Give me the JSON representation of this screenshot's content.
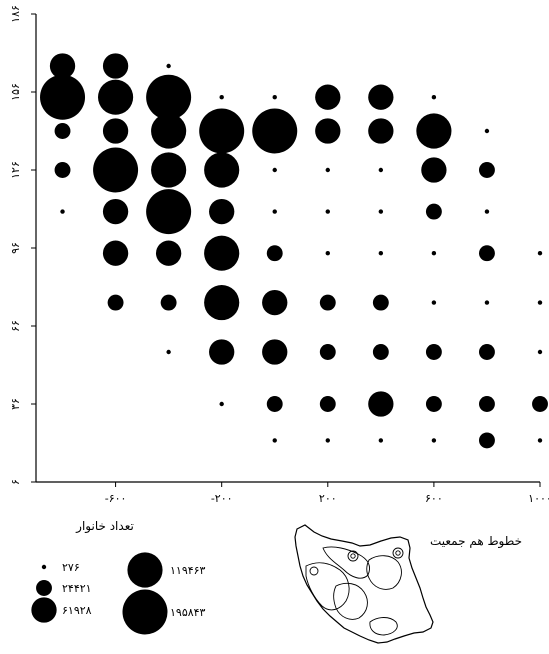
{
  "chart_data": {
    "type": "scatter",
    "title": "",
    "xlabel": "",
    "ylabel": "",
    "xlim": [
      -900,
      1000
    ],
    "ylim": [
      6,
      186
    ],
    "x_ticks": [
      {
        "value": -600,
        "label": "-۶۰۰"
      },
      {
        "value": -200,
        "label": "-۲۰۰"
      },
      {
        "value": 200,
        "label": "۲۰۰"
      },
      {
        "value": 600,
        "label": "۶۰۰"
      },
      {
        "value": 1000,
        "label": "۱۰۰۰"
      }
    ],
    "y_ticks": [
      {
        "value": 6,
        "label": "۶"
      },
      {
        "value": 36,
        "label": "۳۶"
      },
      {
        "value": 66,
        "label": "۶۶"
      },
      {
        "value": 96,
        "label": "۹۶"
      },
      {
        "value": 126,
        "label": "۱۲۶"
      },
      {
        "value": 156,
        "label": "۱۵۶"
      },
      {
        "value": 186,
        "label": "۱۸۶"
      }
    ],
    "points": [
      {
        "x": -800,
        "y": 166,
        "size": 61928
      },
      {
        "x": -600,
        "y": 166,
        "size": 61928
      },
      {
        "x": -400,
        "y": 166,
        "size": 276
      },
      {
        "x": -800,
        "y": 154,
        "size": 195843
      },
      {
        "x": -600,
        "y": 154,
        "size": 119463
      },
      {
        "x": -400,
        "y": 154,
        "size": 195843
      },
      {
        "x": -200,
        "y": 154,
        "size": 276
      },
      {
        "x": 0,
        "y": 154,
        "size": 276
      },
      {
        "x": 200,
        "y": 154,
        "size": 61928
      },
      {
        "x": 400,
        "y": 154,
        "size": 61928
      },
      {
        "x": 600,
        "y": 154,
        "size": 276
      },
      {
        "x": -800,
        "y": 141,
        "size": 24421
      },
      {
        "x": -600,
        "y": 141,
        "size": 61928
      },
      {
        "x": -400,
        "y": 141,
        "size": 119463
      },
      {
        "x": -200,
        "y": 141,
        "size": 195843
      },
      {
        "x": 0,
        "y": 141,
        "size": 195843
      },
      {
        "x": 200,
        "y": 141,
        "size": 61928
      },
      {
        "x": 400,
        "y": 141,
        "size": 61928
      },
      {
        "x": 600,
        "y": 141,
        "size": 119463
      },
      {
        "x": 800,
        "y": 141,
        "size": 276
      },
      {
        "x": -800,
        "y": 126,
        "size": 24421
      },
      {
        "x": -600,
        "y": 126,
        "size": 195843
      },
      {
        "x": -400,
        "y": 126,
        "size": 119463
      },
      {
        "x": -200,
        "y": 126,
        "size": 119463
      },
      {
        "x": 0,
        "y": 126,
        "size": 276
      },
      {
        "x": 200,
        "y": 126,
        "size": 276
      },
      {
        "x": 400,
        "y": 126,
        "size": 276
      },
      {
        "x": 600,
        "y": 126,
        "size": 61928
      },
      {
        "x": 800,
        "y": 126,
        "size": 24421
      },
      {
        "x": -800,
        "y": 110,
        "size": 276
      },
      {
        "x": -600,
        "y": 110,
        "size": 61928
      },
      {
        "x": -400,
        "y": 110,
        "size": 195843
      },
      {
        "x": -200,
        "y": 110,
        "size": 61928
      },
      {
        "x": 0,
        "y": 110,
        "size": 276
      },
      {
        "x": 200,
        "y": 110,
        "size": 276
      },
      {
        "x": 400,
        "y": 110,
        "size": 276
      },
      {
        "x": 600,
        "y": 110,
        "size": 24421
      },
      {
        "x": 800,
        "y": 110,
        "size": 276
      },
      {
        "x": -600,
        "y": 94,
        "size": 61928
      },
      {
        "x": -400,
        "y": 94,
        "size": 61928
      },
      {
        "x": -200,
        "y": 94,
        "size": 119463
      },
      {
        "x": 0,
        "y": 94,
        "size": 24421
      },
      {
        "x": 200,
        "y": 94,
        "size": 276
      },
      {
        "x": 400,
        "y": 94,
        "size": 276
      },
      {
        "x": 600,
        "y": 94,
        "size": 276
      },
      {
        "x": 800,
        "y": 94,
        "size": 24421
      },
      {
        "x": 1000,
        "y": 94,
        "size": 276
      },
      {
        "x": -600,
        "y": 75,
        "size": 24421
      },
      {
        "x": -400,
        "y": 75,
        "size": 24421
      },
      {
        "x": -200,
        "y": 75,
        "size": 119463
      },
      {
        "x": 0,
        "y": 75,
        "size": 61928
      },
      {
        "x": 200,
        "y": 75,
        "size": 24421
      },
      {
        "x": 400,
        "y": 75,
        "size": 24421
      },
      {
        "x": 600,
        "y": 75,
        "size": 276
      },
      {
        "x": 800,
        "y": 75,
        "size": 276
      },
      {
        "x": 1000,
        "y": 75,
        "size": 276
      },
      {
        "x": -400,
        "y": 56,
        "size": 276
      },
      {
        "x": -200,
        "y": 56,
        "size": 61928
      },
      {
        "x": 0,
        "y": 56,
        "size": 61928
      },
      {
        "x": 200,
        "y": 56,
        "size": 24421
      },
      {
        "x": 400,
        "y": 56,
        "size": 24421
      },
      {
        "x": 600,
        "y": 56,
        "size": 24421
      },
      {
        "x": 800,
        "y": 56,
        "size": 24421
      },
      {
        "x": 1000,
        "y": 56,
        "size": 276
      },
      {
        "x": -200,
        "y": 36,
        "size": 276
      },
      {
        "x": 0,
        "y": 36,
        "size": 24421
      },
      {
        "x": 200,
        "y": 36,
        "size": 24421
      },
      {
        "x": 400,
        "y": 36,
        "size": 61928
      },
      {
        "x": 600,
        "y": 36,
        "size": 24421
      },
      {
        "x": 800,
        "y": 36,
        "size": 24421
      },
      {
        "x": 1000,
        "y": 36,
        "size": 24421
      },
      {
        "x": 0,
        "y": 22,
        "size": 276
      },
      {
        "x": 200,
        "y": 22,
        "size": 276
      },
      {
        "x": 400,
        "y": 22,
        "size": 276
      },
      {
        "x": 600,
        "y": 22,
        "size": 276
      },
      {
        "x": 800,
        "y": 22,
        "size": 24421
      },
      {
        "x": 1000,
        "y": 22,
        "size": 276
      }
    ],
    "legend": {
      "title": "تعداد خانوار",
      "entries": [
        {
          "label": "۲۷۶",
          "size": 276
        },
        {
          "label": "۲۴۴۲۱",
          "size": 24421
        },
        {
          "label": "۶۱۹۲۸",
          "size": 61928
        },
        {
          "label": "۱۱۹۴۶۳",
          "size": 119463
        },
        {
          "label": "۱۹۵۸۴۳",
          "size": 195843
        }
      ]
    },
    "grid": false,
    "legend_position": "bottom-left"
  },
  "inset_map": {
    "label": "خطوط هم جمعیت"
  },
  "colors": {
    "marker": "#000000",
    "axis": "#000000",
    "background": "#ffffff"
  }
}
